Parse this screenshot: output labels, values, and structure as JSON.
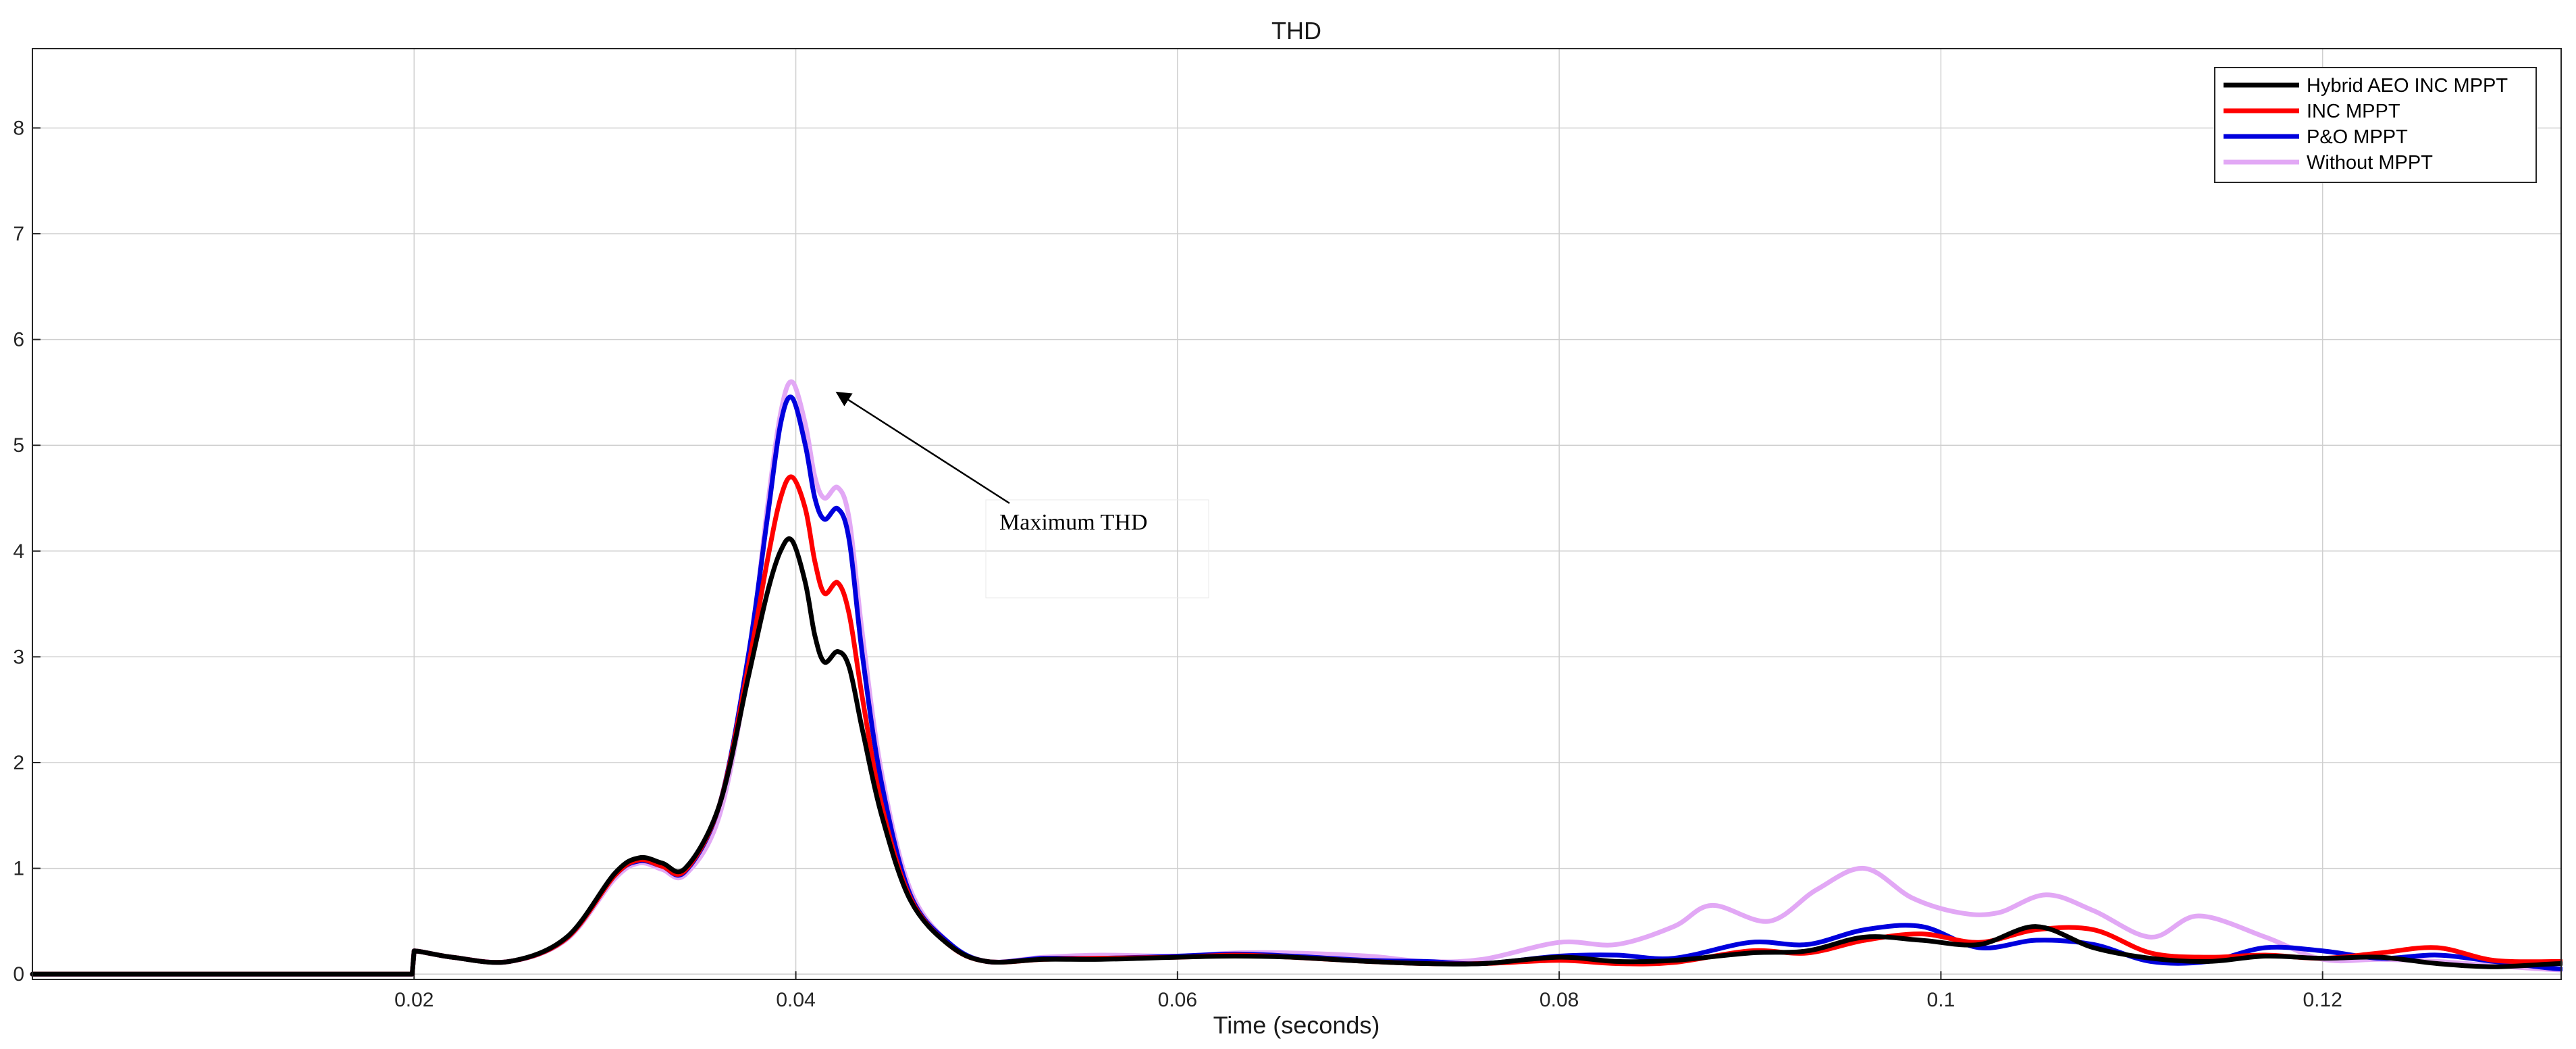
{
  "chart_data": {
    "type": "line",
    "title": "THD",
    "xlabel": "Time (seconds)",
    "ylabel": "",
    "xlim": [
      0,
      0.1325
    ],
    "ylim": [
      -0.05,
      8.75
    ],
    "xticks": [
      0.02,
      0.04,
      0.06,
      0.08,
      0.1,
      0.12
    ],
    "xtick_labels": [
      "0.02",
      "0.04",
      "0.06",
      "0.08",
      "0.1",
      "0.12"
    ],
    "yticks": [
      0,
      1,
      2,
      3,
      4,
      5,
      6,
      7,
      8
    ],
    "ytick_labels": [
      "0",
      "1",
      "2",
      "3",
      "4",
      "5",
      "6",
      "7",
      "8"
    ],
    "grid": true,
    "legend_position": "top-right",
    "series": [
      {
        "name": "Hybrid AEO INC MPPT",
        "color": "#000000",
        "x": [
          0,
          0.0199,
          0.02,
          0.022,
          0.025,
          0.028,
          0.0305,
          0.0318,
          0.033,
          0.0342,
          0.036,
          0.0375,
          0.0385,
          0.0392,
          0.0398,
          0.0405,
          0.041,
          0.0415,
          0.0422,
          0.0428,
          0.0435,
          0.0445,
          0.046,
          0.048,
          0.05,
          0.053,
          0.056,
          0.06,
          0.063,
          0.066,
          0.07,
          0.073,
          0.076,
          0.08,
          0.083,
          0.086,
          0.09,
          0.093,
          0.096,
          0.099,
          0.102,
          0.105,
          0.108,
          0.111,
          0.114,
          0.117,
          0.12,
          0.123,
          0.126,
          0.129,
          0.1325
        ],
        "values": [
          0,
          0,
          0.22,
          0.16,
          0.12,
          0.35,
          0.95,
          1.1,
          1.05,
          1.0,
          1.6,
          2.8,
          3.6,
          4.0,
          4.1,
          3.7,
          3.2,
          2.95,
          3.05,
          2.9,
          2.3,
          1.5,
          0.7,
          0.28,
          0.12,
          0.14,
          0.14,
          0.16,
          0.17,
          0.16,
          0.12,
          0.1,
          0.1,
          0.16,
          0.12,
          0.13,
          0.2,
          0.22,
          0.35,
          0.32,
          0.28,
          0.45,
          0.25,
          0.15,
          0.12,
          0.17,
          0.15,
          0.16,
          0.1,
          0.07,
          0.1
        ]
      },
      {
        "name": "INC MPPT",
        "color": "#ff0000",
        "x": [
          0,
          0.0199,
          0.02,
          0.022,
          0.025,
          0.028,
          0.0305,
          0.0318,
          0.033,
          0.0342,
          0.036,
          0.0375,
          0.0385,
          0.0392,
          0.0398,
          0.0405,
          0.041,
          0.0415,
          0.0422,
          0.0428,
          0.0435,
          0.0445,
          0.046,
          0.048,
          0.05,
          0.053,
          0.056,
          0.06,
          0.063,
          0.066,
          0.07,
          0.073,
          0.076,
          0.08,
          0.083,
          0.086,
          0.09,
          0.093,
          0.096,
          0.099,
          0.102,
          0.105,
          0.108,
          0.111,
          0.114,
          0.117,
          0.12,
          0.123,
          0.126,
          0.129,
          0.1325
        ],
        "values": [
          0,
          0,
          0.22,
          0.16,
          0.12,
          0.34,
          0.93,
          1.08,
          1.02,
          0.98,
          1.6,
          2.9,
          3.9,
          4.5,
          4.7,
          4.4,
          3.9,
          3.6,
          3.7,
          3.4,
          2.6,
          1.6,
          0.72,
          0.28,
          0.12,
          0.14,
          0.15,
          0.16,
          0.18,
          0.16,
          0.12,
          0.1,
          0.1,
          0.13,
          0.1,
          0.11,
          0.22,
          0.2,
          0.32,
          0.38,
          0.3,
          0.42,
          0.42,
          0.2,
          0.16,
          0.18,
          0.15,
          0.2,
          0.25,
          0.13,
          0.12
        ]
      },
      {
        "name": "P&O MPPT",
        "color": "#0000dd",
        "x": [
          0,
          0.0199,
          0.02,
          0.022,
          0.025,
          0.028,
          0.0305,
          0.0318,
          0.033,
          0.0342,
          0.036,
          0.0375,
          0.0385,
          0.0392,
          0.0398,
          0.0405,
          0.041,
          0.0415,
          0.0422,
          0.0428,
          0.0435,
          0.0445,
          0.046,
          0.048,
          0.05,
          0.053,
          0.056,
          0.06,
          0.063,
          0.066,
          0.07,
          0.073,
          0.076,
          0.08,
          0.083,
          0.086,
          0.09,
          0.093,
          0.096,
          0.099,
          0.102,
          0.105,
          0.108,
          0.111,
          0.114,
          0.117,
          0.12,
          0.123,
          0.126,
          0.129,
          0.1325
        ],
        "values": [
          0,
          0,
          0.22,
          0.16,
          0.12,
          0.34,
          0.93,
          1.07,
          1.02,
          0.97,
          1.6,
          3.0,
          4.3,
          5.2,
          5.45,
          5.0,
          4.5,
          4.3,
          4.4,
          4.1,
          3.0,
          1.8,
          0.75,
          0.3,
          0.12,
          0.15,
          0.15,
          0.17,
          0.19,
          0.17,
          0.13,
          0.12,
          0.1,
          0.17,
          0.18,
          0.15,
          0.3,
          0.28,
          0.42,
          0.45,
          0.25,
          0.32,
          0.28,
          0.12,
          0.12,
          0.25,
          0.22,
          0.15,
          0.18,
          0.12,
          0.05
        ]
      },
      {
        "name": "Without MPPT",
        "color": "#e2a8f5",
        "x": [
          0,
          0.0199,
          0.02,
          0.022,
          0.025,
          0.028,
          0.0305,
          0.0318,
          0.033,
          0.0342,
          0.036,
          0.0375,
          0.0385,
          0.0392,
          0.0398,
          0.0405,
          0.041,
          0.0415,
          0.0422,
          0.0428,
          0.0435,
          0.0445,
          0.046,
          0.048,
          0.05,
          0.053,
          0.056,
          0.06,
          0.063,
          0.066,
          0.07,
          0.073,
          0.076,
          0.08,
          0.083,
          0.086,
          0.088,
          0.091,
          0.0935,
          0.096,
          0.0985,
          0.101,
          0.103,
          0.1055,
          0.108,
          0.111,
          0.1135,
          0.117,
          0.12,
          0.123,
          0.126,
          0.129,
          0.1325
        ],
        "values": [
          0,
          0,
          0.22,
          0.16,
          0.12,
          0.33,
          0.9,
          1.05,
          0.99,
          0.94,
          1.5,
          2.9,
          4.4,
          5.3,
          5.6,
          5.2,
          4.7,
          4.5,
          4.6,
          4.3,
          3.2,
          1.9,
          0.8,
          0.3,
          0.12,
          0.16,
          0.18,
          0.17,
          0.2,
          0.2,
          0.17,
          0.12,
          0.14,
          0.3,
          0.28,
          0.45,
          0.65,
          0.5,
          0.8,
          1.0,
          0.72,
          0.58,
          0.58,
          0.75,
          0.6,
          0.35,
          0.55,
          0.35,
          0.14,
          0.14,
          0.12,
          0.08,
          0.04
        ]
      }
    ],
    "annotation": {
      "text": "Maximum THD",
      "arrow_to_x": 0.0418,
      "arrow_to_y": 5.55
    }
  }
}
